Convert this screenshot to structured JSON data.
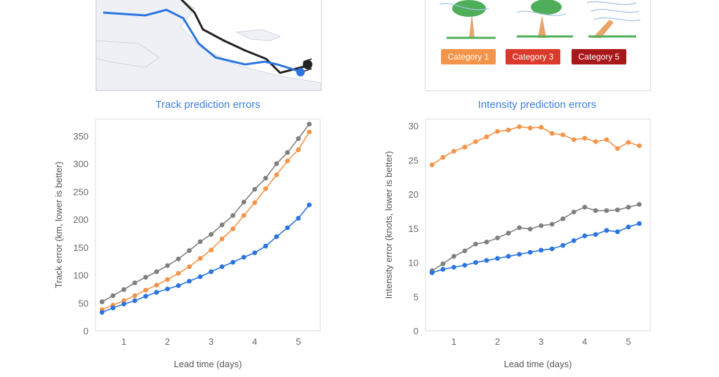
{
  "colors": {
    "blue": "#2a74e0",
    "orange": "#f4944a",
    "gray": "#7f7f7f",
    "dark": "#222222",
    "title_blue": "#3d7fe0"
  },
  "legend": {
    "categories": [
      {
        "label": "Category 1",
        "color": "#f4944a"
      },
      {
        "label": "Category 3",
        "color": "#d93a2b"
      },
      {
        "label": "Category 5",
        "color": "#a8181b"
      }
    ]
  },
  "titles": {
    "track": "Track prediction errors",
    "intensity": "Intensity prediction errors"
  },
  "chart_data": [
    {
      "type": "line",
      "xlabel": "Lead time (days)",
      "ylabel": "Track error (km, lower is better)",
      "xlim": [
        0.35,
        5.5
      ],
      "ylim": [
        0,
        380
      ],
      "xticks": [
        1,
        2,
        3,
        4,
        5
      ],
      "yticks": [
        0,
        50,
        100,
        150,
        200,
        250,
        300,
        350
      ],
      "x": [
        0.5,
        0.75,
        1.0,
        1.25,
        1.5,
        1.75,
        2.0,
        2.25,
        2.5,
        2.75,
        3.0,
        3.25,
        3.5,
        3.75,
        4.0,
        4.25,
        4.5,
        4.75,
        5.0,
        5.25
      ],
      "series": [
        {
          "color": "#7f7f7f",
          "values": [
            52,
            63,
            74,
            86,
            96,
            106,
            117,
            129,
            144,
            160,
            173,
            190,
            207,
            231,
            254,
            274,
            300,
            320,
            345,
            371
          ]
        },
        {
          "color": "#f4944a",
          "values": [
            38,
            46,
            54,
            63,
            73,
            82,
            92,
            103,
            115,
            130,
            145,
            165,
            183,
            207,
            230,
            255,
            280,
            305,
            325,
            357
          ]
        },
        {
          "color": "#2a74e0",
          "values": [
            33,
            41,
            48,
            54,
            62,
            69,
            75,
            81,
            89,
            97,
            106,
            115,
            123,
            132,
            140,
            152,
            169,
            185,
            202,
            226
          ]
        }
      ]
    },
    {
      "type": "line",
      "xlabel": "Lead time (days)",
      "ylabel": "Intensity error (knots, lower is better)",
      "xlim": [
        0.35,
        5.5
      ],
      "ylim": [
        0,
        31
      ],
      "xticks": [
        1,
        2,
        3,
        4,
        5
      ],
      "yticks": [
        0,
        5,
        10,
        15,
        20,
        25,
        30
      ],
      "x": [
        0.5,
        0.75,
        1.0,
        1.25,
        1.5,
        1.75,
        2.0,
        2.25,
        2.5,
        2.75,
        3.0,
        3.25,
        3.5,
        3.75,
        4.0,
        4.25,
        4.5,
        4.75,
        5.0,
        5.25
      ],
      "series": [
        {
          "color": "#f4944a",
          "values": [
            24.3,
            25.4,
            26.3,
            26.9,
            27.7,
            28.4,
            29.2,
            29.4,
            29.9,
            29.7,
            29.8,
            28.9,
            28.7,
            28.0,
            28.2,
            27.7,
            28.0,
            26.7,
            27.6,
            27.1
          ]
        },
        {
          "color": "#7f7f7f",
          "values": [
            8.8,
            9.8,
            10.9,
            11.7,
            12.7,
            13.0,
            13.6,
            14.3,
            15.1,
            14.9,
            15.4,
            15.6,
            16.4,
            17.4,
            18.1,
            17.6,
            17.6,
            17.7,
            18.1,
            18.5
          ]
        },
        {
          "color": "#2a74e0",
          "values": [
            8.5,
            9.0,
            9.3,
            9.6,
            10.0,
            10.3,
            10.6,
            10.9,
            11.2,
            11.5,
            11.8,
            12.0,
            12.5,
            13.2,
            13.9,
            14.1,
            14.7,
            14.5,
            15.2,
            15.7
          ]
        }
      ]
    }
  ]
}
